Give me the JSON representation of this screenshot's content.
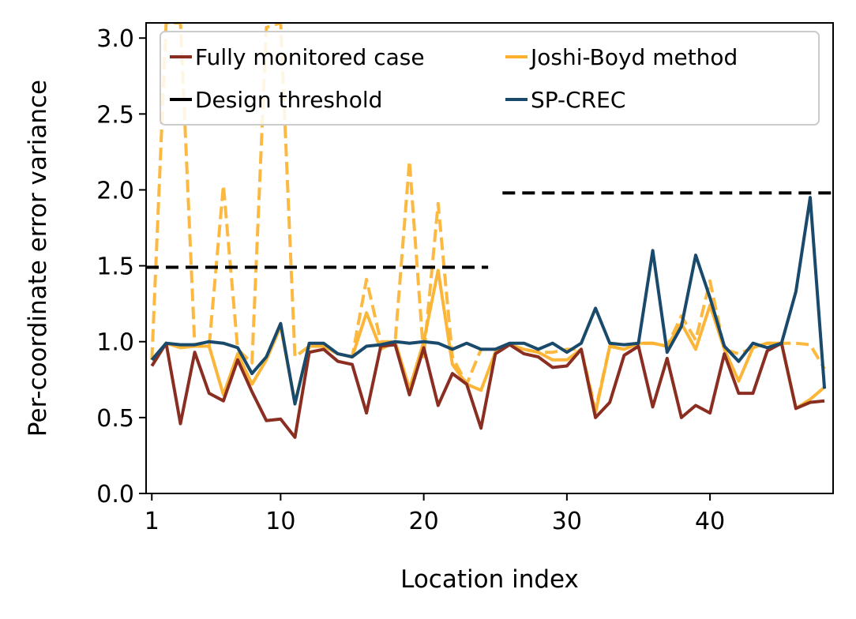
{
  "chart_data": {
    "type": "line",
    "title": "",
    "xlabel": "Location index",
    "ylabel": "Per-coordinate error variance",
    "xlim": [
      0.6,
      48.6
    ],
    "ylim": [
      0,
      3.1
    ],
    "xticks": [
      1,
      10,
      20,
      30,
      40
    ],
    "yticks": [
      0.0,
      0.5,
      1.0,
      1.5,
      2.0,
      2.5,
      3.0
    ],
    "xtick_labels": [
      "1",
      "10",
      "20",
      "30",
      "40"
    ],
    "ytick_labels": [
      "0.0",
      "0.5",
      "1.0",
      "1.5",
      "2.0",
      "2.5",
      "3.0"
    ],
    "grid": false,
    "legend_position": "top",
    "legend": [
      {
        "label": "Fully monitored case",
        "color": "#8b2e22"
      },
      {
        "label": "Joshi-Boyd method",
        "color": "#fbb12e"
      },
      {
        "label": "Design threshold",
        "color": "#000000"
      },
      {
        "label": "SP-CREC",
        "color": "#1a4a6b"
      }
    ],
    "x": [
      1,
      2,
      3,
      4,
      5,
      6,
      7,
      8,
      9,
      10,
      11,
      12,
      13,
      14,
      15,
      16,
      17,
      18,
      19,
      20,
      21,
      22,
      23,
      24,
      25,
      26,
      27,
      28,
      29,
      30,
      31,
      32,
      33,
      34,
      35,
      36,
      37,
      38,
      39,
      40,
      41,
      42,
      43,
      44,
      45,
      46,
      47,
      48
    ],
    "series": [
      {
        "name": "Joshi-Boyd method (dashed)",
        "color": "#fbb12e",
        "style": "dashed",
        "values": [
          0.88,
          3.1,
          3.1,
          0.97,
          0.97,
          2.03,
          0.95,
          0.86,
          3.07,
          3.1,
          0.9,
          0.97,
          0.97,
          0.92,
          0.9,
          1.41,
          1.0,
          1.0,
          2.19,
          0.9,
          1.91,
          0.9,
          0.72,
          0.95,
          0.95,
          0.98,
          0.95,
          0.93,
          0.93,
          0.95,
          0.95,
          0.55,
          0.97,
          0.95,
          0.99,
          0.99,
          0.97,
          1.17,
          1.01,
          1.4,
          0.95,
          0.92,
          0.96,
          0.99,
          0.99,
          0.99,
          0.98,
          0.82
        ]
      },
      {
        "name": "Joshi-Boyd method (solid)",
        "color": "#fbb12e",
        "style": "solid",
        "values": [
          0.88,
          0.99,
          0.96,
          0.97,
          0.97,
          0.65,
          0.92,
          0.72,
          0.88,
          1.1,
          0.6,
          0.97,
          0.97,
          0.92,
          0.9,
          1.19,
          0.95,
          1.0,
          0.69,
          1.0,
          1.47,
          0.85,
          0.72,
          0.68,
          0.93,
          0.98,
          0.95,
          0.93,
          0.88,
          0.88,
          0.95,
          0.53,
          0.97,
          0.95,
          0.99,
          0.99,
          0.97,
          1.12,
          0.95,
          1.24,
          0.95,
          0.74,
          0.96,
          0.99,
          0.99,
          0.56,
          0.62,
          0.7
        ]
      },
      {
        "name": "Fully monitored case",
        "color": "#8b2e22",
        "style": "solid",
        "values": [
          0.84,
          0.99,
          0.46,
          0.93,
          0.66,
          0.61,
          0.88,
          0.67,
          0.48,
          0.49,
          0.37,
          0.93,
          0.95,
          0.87,
          0.85,
          0.53,
          0.97,
          0.98,
          0.65,
          0.96,
          0.58,
          0.79,
          0.72,
          0.43,
          0.92,
          0.98,
          0.92,
          0.9,
          0.83,
          0.84,
          0.95,
          0.5,
          0.6,
          0.91,
          0.97,
          0.57,
          0.89,
          0.5,
          0.58,
          0.53,
          0.92,
          0.66,
          0.66,
          0.94,
          0.99,
          0.56,
          0.6,
          0.61
        ]
      },
      {
        "name": "SP-CREC",
        "color": "#1a4a6b",
        "style": "solid",
        "values": [
          0.88,
          0.99,
          0.98,
          0.98,
          1.0,
          0.99,
          0.96,
          0.79,
          0.9,
          1.12,
          0.59,
          0.99,
          0.99,
          0.92,
          0.9,
          0.97,
          0.98,
          1.0,
          0.99,
          1.0,
          0.99,
          0.95,
          0.99,
          0.95,
          0.95,
          0.99,
          0.99,
          0.95,
          0.99,
          0.93,
          0.99,
          1.22,
          0.99,
          0.98,
          0.99,
          1.6,
          0.93,
          1.1,
          1.57,
          1.29,
          0.97,
          0.87,
          0.99,
          0.96,
          0.99,
          1.33,
          1.95,
          0.69
        ]
      }
    ],
    "thresholds": [
      {
        "name": "Design threshold",
        "x_start": 0.6,
        "x_end": 24.5,
        "y": 1.49
      },
      {
        "name": "Design threshold",
        "x_start": 25.5,
        "x_end": 48.6,
        "y": 1.98
      }
    ]
  }
}
